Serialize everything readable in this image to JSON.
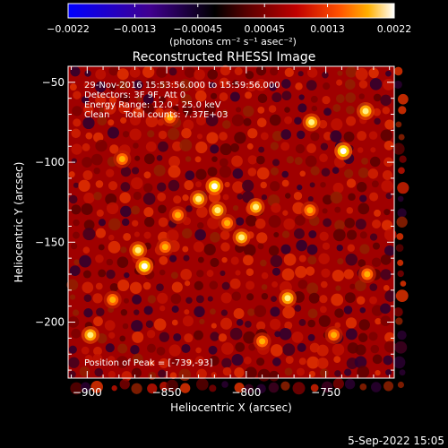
{
  "chart_data": {
    "type": "heatmap",
    "title": "Reconstructed RHESSI Image",
    "xlabel": "Heliocentric X (arcsec)",
    "ylabel": "Heliocentric Y (arcsec)",
    "xlim": [
      -912,
      -707
    ],
    "ylim": [
      -235,
      -40
    ],
    "x_ticks": [
      -900,
      -850,
      -800,
      -750
    ],
    "x_tick_labels": [
      "−900",
      "−850",
      "−800",
      "−750"
    ],
    "y_ticks": [
      -50,
      -100,
      -150,
      -200
    ],
    "y_tick_labels": [
      "−50",
      "−100",
      "−150",
      "−200"
    ],
    "colorbar": {
      "ticks": [
        -0.0022,
        -0.0013,
        -0.00045,
        0.00045,
        0.0013,
        0.0022
      ],
      "tick_labels": [
        "−0.0022",
        "−0.0013",
        "−0.00045",
        "0.00045",
        "0.0013",
        "0.0022"
      ],
      "range": [
        -0.0022,
        0.0022
      ],
      "units_label": "(photons cm⁻² s⁻¹ asec⁻²)",
      "colormap": [
        "#0000ff",
        "#400090",
        "#000000",
        "#5a0000",
        "#c00000",
        "#ff5000",
        "#ffb000",
        "#ffffff"
      ]
    },
    "annotations": {
      "time_range": "29-Nov-2016 15:53:56.000 to 15:59:56.000",
      "detectors": "Detectors: 3F 9F, Att 0",
      "energy": "Energy Range: 12.0 - 25.0 keV",
      "clean": "Clean     Total counts: 7.37E+03",
      "peak": "Position of Peak = [-739,-93]"
    },
    "sources": [
      {
        "x": -820,
        "y": -115,
        "value": 0.0022
      },
      {
        "x": -830,
        "y": -123,
        "value": 0.0016
      },
      {
        "x": -818,
        "y": -130,
        "value": 0.0019
      },
      {
        "x": -794,
        "y": -128,
        "value": 0.0019
      },
      {
        "x": -803,
        "y": -147,
        "value": 0.002
      },
      {
        "x": -812,
        "y": -138,
        "value": 0.0011
      },
      {
        "x": -843,
        "y": -133,
        "value": 0.0012
      },
      {
        "x": -739,
        "y": -93,
        "value": 0.0022
      },
      {
        "x": -759,
        "y": -75,
        "value": 0.0018
      },
      {
        "x": -725,
        "y": -68,
        "value": 0.0017
      },
      {
        "x": -864,
        "y": -165,
        "value": 0.0021
      },
      {
        "x": -868,
        "y": -155,
        "value": 0.0017
      },
      {
        "x": -851,
        "y": -153,
        "value": 0.0012
      },
      {
        "x": -898,
        "y": -208,
        "value": 0.0019
      },
      {
        "x": -884,
        "y": -186,
        "value": 0.0012
      },
      {
        "x": -774,
        "y": -185,
        "value": 0.0016
      },
      {
        "x": -724,
        "y": -170,
        "value": 0.0009
      },
      {
        "x": -878,
        "y": -98,
        "value": 0.001
      },
      {
        "x": -848,
        "y": -72,
        "value": 0.0008
      },
      {
        "x": -760,
        "y": -130,
        "value": 0.0008
      },
      {
        "x": -790,
        "y": -212,
        "value": 0.0008
      },
      {
        "x": -745,
        "y": -208,
        "value": 0.0007
      }
    ]
  },
  "footer": {
    "date": "5-Sep-2022 15:05"
  }
}
